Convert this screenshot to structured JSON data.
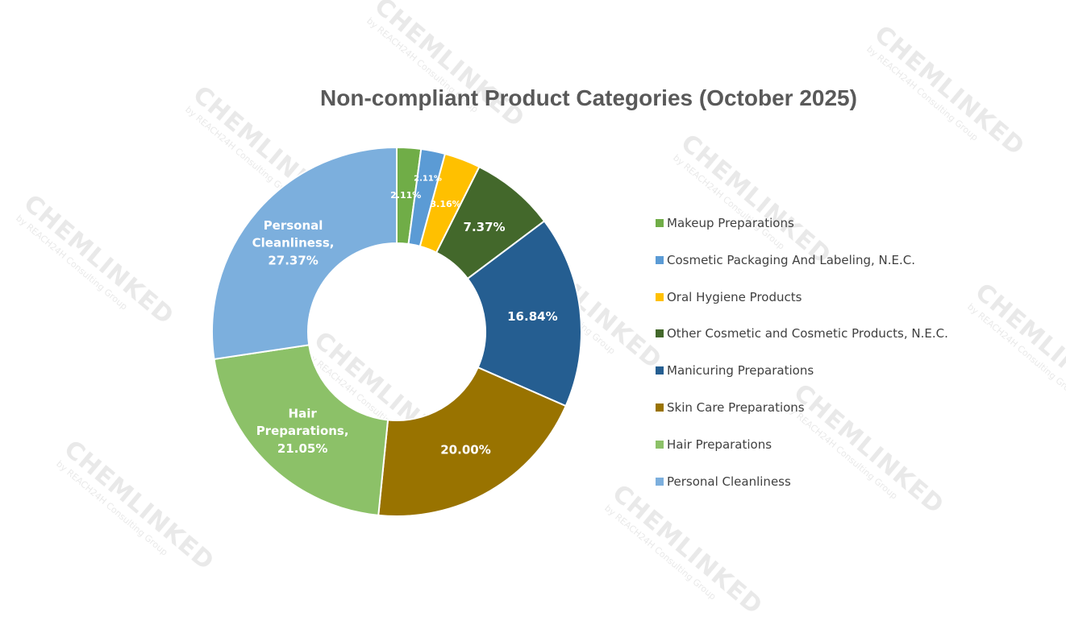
{
  "chart_data": {
    "type": "pie",
    "title": "Non-compliant Product Categories (October 2025)",
    "legend_position": "right",
    "slices": [
      {
        "label": "Makeup Preparations",
        "value": 2.11,
        "display": "2.11%",
        "color": "#70AD47"
      },
      {
        "label": "Cosmetic Packaging And Labeling, N.E.C.",
        "value": 2.11,
        "display": "2.11%",
        "color": "#5B9BD5"
      },
      {
        "label": "Oral Hygiene Products",
        "value": 3.16,
        "display": "3.16%",
        "color": "#FFC000"
      },
      {
        "label": "Other Cosmetic and Cosmetic Products, N.E.C.",
        "value": 7.37,
        "display": "7.37%",
        "color": "#43682B"
      },
      {
        "label": "Manicuring Preparations",
        "value": 16.84,
        "display": "16.84%",
        "color": "#255E91"
      },
      {
        "label": "Skin Care Preparations",
        "value": 20.0,
        "display": "20.00%",
        "color": "#997300"
      },
      {
        "label": "Hair Preparations",
        "value": 21.05,
        "display": "Hair\nPreparations,\n21.05%",
        "color": "#8CC168"
      },
      {
        "label": "Personal Cleanliness",
        "value": 27.37,
        "display": "Personal\nCleanliness,\n27.37%",
        "color": "#7CAFDD"
      }
    ]
  },
  "watermark": {
    "brand": "CHEMLINKED",
    "subline": "by REACH24H Consulting Group"
  }
}
